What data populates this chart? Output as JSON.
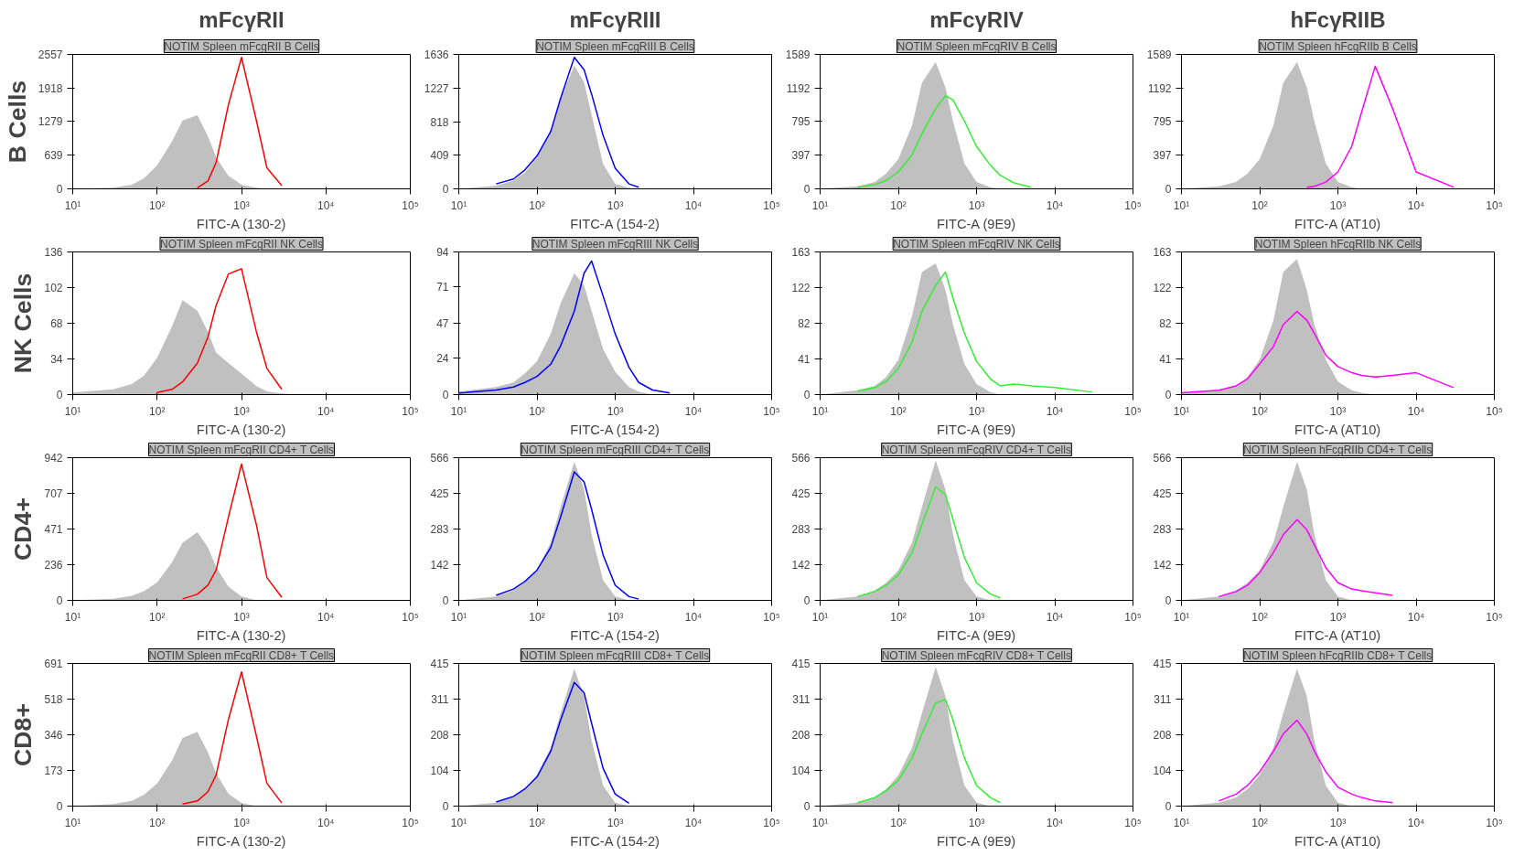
{
  "chart_data": [
    {
      "type": "area",
      "annotations": [
        "mFcγRII"
      ],
      "ylabel": "B Cells",
      "title": "NOTIM Spleen mFcgRII B Cells",
      "xlabel": "FITC-A (130-2)",
      "log": "x",
      "xlim": [
        10,
        100000
      ],
      "xticks": [
        {
          "value": 10,
          "label": "10¹"
        },
        {
          "value": 100,
          "label": "10²"
        },
        {
          "value": 1000,
          "label": "10³"
        },
        {
          "value": 10000,
          "label": "10⁴"
        },
        {
          "value": 100000,
          "label": "10⁵"
        }
      ],
      "ylim": [
        0,
        2557
      ],
      "yticks": [
        0,
        639,
        1279,
        1918,
        2557
      ],
      "x": [
        10,
        30,
        50,
        70,
        100,
        150,
        200,
        300,
        400,
        500,
        700,
        1000,
        1500,
        2000,
        3000,
        5000,
        10000,
        30000,
        100000
      ],
      "series": [
        {
          "color": "#c0c0c0",
          "values": [
            0,
            20,
            80,
            200,
            450,
            900,
            1300,
            1400,
            1000,
            600,
            250,
            80,
            20,
            0,
            0,
            0,
            0,
            0,
            0
          ]
        },
        {
          "type": "line",
          "color": "#ff0000",
          "values": [
            null,
            null,
            null,
            null,
            null,
            null,
            null,
            20,
            150,
            500,
            1600,
            2500,
            1300,
            400,
            60,
            null,
            null,
            null,
            null
          ]
        }
      ]
    },
    {
      "type": "area",
      "annotations": [
        "mFcγRIII"
      ],
      "title": "NOTIM Spleen mFcgRIII B Cells",
      "xlabel": "FITC-A (154-2)",
      "log": "x",
      "xlim": [
        10,
        100000
      ],
      "xticks": [
        {
          "value": 10,
          "label": "10¹"
        },
        {
          "value": 100,
          "label": "10²"
        },
        {
          "value": 1000,
          "label": "10³"
        },
        {
          "value": 10000,
          "label": "10⁴"
        },
        {
          "value": 100000,
          "label": "10⁵"
        }
      ],
      "ylim": [
        0,
        1636
      ],
      "yticks": [
        0,
        409,
        818,
        1227,
        1636
      ],
      "x": [
        10,
        30,
        50,
        70,
        100,
        150,
        200,
        300,
        400,
        500,
        700,
        1000,
        1500,
        2000,
        3000,
        5000,
        10000,
        30000,
        100000
      ],
      "series": [
        {
          "color": "#c0c0c0",
          "values": [
            0,
            40,
            100,
            200,
            380,
            700,
            1100,
            1500,
            1300,
            900,
            300,
            60,
            10,
            0,
            0,
            0,
            0,
            0,
            0
          ]
        },
        {
          "type": "line",
          "color": "#0000ff",
          "values": [
            null,
            60,
            120,
            230,
            400,
            700,
            1100,
            1600,
            1450,
            1150,
            650,
            250,
            60,
            20,
            null,
            null,
            null,
            null,
            null
          ]
        }
      ]
    },
    {
      "type": "area",
      "annotations": [
        "mFcγRIV"
      ],
      "title": "NOTIM Spleen mFcgRIV B Cells",
      "xlabel": "FITC-A (9E9)",
      "log": "x",
      "xlim": [
        10,
        100000
      ],
      "xticks": [
        {
          "value": 10,
          "label": "10¹"
        },
        {
          "value": 100,
          "label": "10²"
        },
        {
          "value": 1000,
          "label": "10³"
        },
        {
          "value": 10000,
          "label": "10⁴"
        },
        {
          "value": 100000,
          "label": "10⁵"
        }
      ],
      "ylim": [
        0,
        1589
      ],
      "yticks": [
        0,
        397,
        795,
        1192,
        1589
      ],
      "x": [
        10,
        30,
        50,
        70,
        100,
        150,
        200,
        300,
        400,
        500,
        700,
        1000,
        1500,
        2000,
        3000,
        5000,
        10000,
        30000,
        100000
      ],
      "series": [
        {
          "color": "#c0c0c0",
          "values": [
            0,
            30,
            80,
            180,
            350,
            750,
            1250,
            1500,
            1200,
            800,
            300,
            80,
            20,
            0,
            0,
            0,
            0,
            0,
            0
          ]
        },
        {
          "type": "line",
          "color": "#33ee33",
          "values": [
            null,
            20,
            50,
            100,
            200,
            400,
            650,
            950,
            1100,
            1050,
            800,
            500,
            280,
            160,
            70,
            20,
            null,
            null,
            null
          ]
        }
      ]
    },
    {
      "type": "area",
      "annotations": [
        "hFcγRIIB"
      ],
      "title": "NOTIM Spleen hFcgRIIb B Cells",
      "xlabel": "FITC-A (AT10)",
      "log": "x",
      "xlim": [
        10,
        100000
      ],
      "xticks": [
        {
          "value": 10,
          "label": "10¹"
        },
        {
          "value": 100,
          "label": "10²"
        },
        {
          "value": 1000,
          "label": "10³"
        },
        {
          "value": 10000,
          "label": "10⁴"
        },
        {
          "value": 100000,
          "label": "10⁵"
        }
      ],
      "ylim": [
        0,
        1589
      ],
      "yticks": [
        0,
        397,
        795,
        1192,
        1589
      ],
      "x": [
        10,
        30,
        50,
        70,
        100,
        150,
        200,
        300,
        400,
        500,
        700,
        1000,
        1500,
        2000,
        3000,
        5000,
        10000,
        30000,
        100000
      ],
      "series": [
        {
          "color": "#c0c0c0",
          "values": [
            0,
            30,
            80,
            180,
            350,
            750,
            1250,
            1500,
            1200,
            800,
            300,
            80,
            20,
            0,
            0,
            0,
            0,
            0,
            0
          ]
        },
        {
          "type": "line",
          "color": "#ff00ff",
          "values": [
            null,
            null,
            null,
            null,
            null,
            null,
            null,
            null,
            20,
            30,
            80,
            200,
            500,
            900,
            1450,
            950,
            200,
            20,
            null
          ]
        }
      ]
    },
    {
      "type": "area",
      "ylabel": "NK Cells",
      "title": "NOTIM Spleen mFcgRII NK Cells",
      "xlabel": "FITC-A (130-2)",
      "log": "x",
      "xlim": [
        10,
        100000
      ],
      "xticks": [
        {
          "value": 10,
          "label": "10¹"
        },
        {
          "value": 100,
          "label": "10²"
        },
        {
          "value": 1000,
          "label": "10³"
        },
        {
          "value": 10000,
          "label": "10⁴"
        },
        {
          "value": 100000,
          "label": "10⁵"
        }
      ],
      "ylim": [
        0,
        136
      ],
      "yticks": [
        0,
        34,
        68,
        102,
        136
      ],
      "x": [
        10,
        30,
        50,
        70,
        100,
        150,
        200,
        300,
        400,
        500,
        700,
        1000,
        1500,
        2000,
        3000,
        5000,
        10000,
        30000,
        100000
      ],
      "series": [
        {
          "color": "#c0c0c0",
          "values": [
            2,
            5,
            10,
            18,
            35,
            65,
            90,
            80,
            60,
            40,
            30,
            20,
            8,
            3,
            1,
            0,
            0,
            0,
            0
          ]
        },
        {
          "type": "line",
          "color": "#ff0000",
          "values": [
            null,
            null,
            null,
            null,
            2,
            5,
            12,
            30,
            55,
            85,
            115,
            120,
            60,
            25,
            5,
            null,
            null,
            null,
            null
          ]
        }
      ]
    },
    {
      "type": "area",
      "title": "NOTIM Spleen mFcgRIII NK Cells",
      "xlabel": "FITC-A (154-2)",
      "log": "x",
      "xlim": [
        10,
        100000
      ],
      "xticks": [
        {
          "value": 10,
          "label": "10¹"
        },
        {
          "value": 100,
          "label": "10²"
        },
        {
          "value": 1000,
          "label": "10³"
        },
        {
          "value": 10000,
          "label": "10⁴"
        },
        {
          "value": 100000,
          "label": "10⁵"
        }
      ],
      "ylim": [
        0,
        94
      ],
      "yticks": [
        0,
        24,
        47,
        71,
        94
      ],
      "x": [
        10,
        30,
        50,
        70,
        100,
        150,
        200,
        300,
        400,
        500,
        700,
        1000,
        1500,
        2000,
        3000,
        5000,
        10000,
        30000,
        100000
      ],
      "series": [
        {
          "color": "#c0c0c0",
          "values": [
            2,
            5,
            8,
            14,
            22,
            40,
            60,
            80,
            72,
            55,
            30,
            15,
            5,
            2,
            0,
            0,
            0,
            0,
            0
          ]
        },
        {
          "type": "line",
          "color": "#0000ff",
          "values": [
            1,
            3,
            5,
            8,
            12,
            20,
            32,
            55,
            80,
            88,
            65,
            40,
            18,
            8,
            3,
            1,
            null,
            null,
            null
          ]
        }
      ]
    },
    {
      "type": "area",
      "title": "NOTIM Spleen mFcgRIV NK Cells",
      "xlabel": "FITC-A (9E9)",
      "log": "x",
      "xlim": [
        10,
        100000
      ],
      "xticks": [
        {
          "value": 10,
          "label": "10¹"
        },
        {
          "value": 100,
          "label": "10²"
        },
        {
          "value": 1000,
          "label": "10³"
        },
        {
          "value": 10000,
          "label": "10⁴"
        },
        {
          "value": 100000,
          "label": "10⁵"
        }
      ],
      "ylim": [
        0,
        163
      ],
      "yticks": [
        0,
        41,
        82,
        122,
        163
      ],
      "x": [
        10,
        30,
        50,
        70,
        100,
        150,
        200,
        300,
        400,
        500,
        700,
        1000,
        1500,
        2000,
        3000,
        5000,
        10000,
        30000,
        100000
      ],
      "series": [
        {
          "color": "#c0c0c0",
          "values": [
            0,
            5,
            10,
            20,
            40,
            90,
            140,
            150,
            120,
            80,
            35,
            12,
            3,
            0,
            0,
            0,
            0,
            0,
            0
          ]
        },
        {
          "type": "line",
          "color": "#33ee33",
          "values": [
            null,
            4,
            8,
            15,
            30,
            60,
            95,
            125,
            140,
            110,
            70,
            38,
            18,
            10,
            12,
            10,
            8,
            3,
            null
          ]
        }
      ]
    },
    {
      "type": "area",
      "title": "NOTIM Spleen hFcgRIIb NK Cells",
      "xlabel": "FITC-A (AT10)",
      "log": "x",
      "xlim": [
        10,
        100000
      ],
      "xticks": [
        {
          "value": 10,
          "label": "10¹"
        },
        {
          "value": 100,
          "label": "10²"
        },
        {
          "value": 1000,
          "label": "10³"
        },
        {
          "value": 10000,
          "label": "10⁴"
        },
        {
          "value": 100000,
          "label": "10⁵"
        }
      ],
      "ylim": [
        0,
        163
      ],
      "yticks": [
        0,
        41,
        82,
        122,
        163
      ],
      "x": [
        10,
        30,
        50,
        70,
        100,
        150,
        200,
        300,
        400,
        500,
        700,
        1000,
        1500,
        2000,
        3000,
        5000,
        10000,
        30000,
        100000
      ],
      "series": [
        {
          "color": "#c0c0c0",
          "values": [
            2,
            5,
            10,
            20,
            40,
            85,
            140,
            155,
            120,
            80,
            40,
            15,
            5,
            2,
            0,
            0,
            0,
            0,
            0
          ]
        },
        {
          "type": "line",
          "color": "#ff00ff",
          "values": [
            2,
            5,
            10,
            18,
            35,
            55,
            80,
            95,
            85,
            70,
            45,
            32,
            25,
            22,
            20,
            22,
            25,
            8,
            null
          ]
        }
      ]
    },
    {
      "type": "area",
      "ylabel": "CD4+",
      "title": "NOTIM Spleen mFcgRII CD4+ T Cells",
      "xlabel": "FITC-A (130-2)",
      "log": "x",
      "xlim": [
        10,
        100000
      ],
      "xticks": [
        {
          "value": 10,
          "label": "10¹"
        },
        {
          "value": 100,
          "label": "10²"
        },
        {
          "value": 1000,
          "label": "10³"
        },
        {
          "value": 10000,
          "label": "10⁴"
        },
        {
          "value": 100000,
          "label": "10⁵"
        }
      ],
      "ylim": [
        0,
        942
      ],
      "yticks": [
        0,
        236,
        471,
        707,
        942
      ],
      "x": [
        10,
        30,
        50,
        70,
        100,
        150,
        200,
        300,
        400,
        500,
        700,
        1000,
        1500,
        2000,
        3000,
        5000,
        10000,
        30000,
        100000
      ],
      "series": [
        {
          "color": "#c0c0c0",
          "values": [
            0,
            10,
            30,
            60,
            120,
            250,
            380,
            450,
            350,
            220,
            90,
            25,
            0,
            0,
            0,
            0,
            0,
            0,
            0
          ]
        },
        {
          "type": "line",
          "color": "#ff0000",
          "values": [
            null,
            null,
            null,
            null,
            null,
            null,
            10,
            40,
            100,
            200,
            550,
            900,
            500,
            150,
            20,
            null,
            null,
            null,
            null
          ]
        }
      ]
    },
    {
      "type": "area",
      "title": "NOTIM Spleen mFcgRIII CD4+ T Cells",
      "xlabel": "FITC-A (154-2)",
      "log": "x",
      "xlim": [
        10,
        100000
      ],
      "xticks": [
        {
          "value": 10,
          "label": "10¹"
        },
        {
          "value": 100,
          "label": "10²"
        },
        {
          "value": 1000,
          "label": "10³"
        },
        {
          "value": 10000,
          "label": "10⁴"
        },
        {
          "value": 100000,
          "label": "10⁵"
        }
      ],
      "ylim": [
        0,
        566
      ],
      "yticks": [
        0,
        142,
        283,
        425,
        566
      ],
      "x": [
        10,
        30,
        50,
        70,
        100,
        150,
        200,
        300,
        400,
        500,
        700,
        1000,
        1500,
        2000,
        3000,
        5000,
        10000,
        30000,
        100000
      ],
      "series": [
        {
          "color": "#c0c0c0",
          "values": [
            0,
            15,
            40,
            70,
            120,
            230,
            370,
            550,
            440,
            260,
            80,
            15,
            0,
            0,
            0,
            0,
            0,
            0,
            0
          ]
        },
        {
          "type": "line",
          "color": "#0000ff",
          "values": [
            null,
            20,
            45,
            75,
            120,
            210,
            330,
            510,
            470,
            360,
            180,
            60,
            15,
            5,
            null,
            null,
            null,
            null,
            null
          ]
        }
      ]
    },
    {
      "type": "area",
      "title": "NOTIM Spleen mFcgRIV CD4+ T Cells",
      "xlabel": "FITC-A (9E9)",
      "log": "x",
      "xlim": [
        10,
        100000
      ],
      "xticks": [
        {
          "value": 10,
          "label": "10¹"
        },
        {
          "value": 100,
          "label": "10²"
        },
        {
          "value": 1000,
          "label": "10³"
        },
        {
          "value": 10000,
          "label": "10⁴"
        },
        {
          "value": 100000,
          "label": "10⁵"
        }
      ],
      "ylim": [
        0,
        566
      ],
      "yticks": [
        0,
        142,
        283,
        425,
        566
      ],
      "x": [
        10,
        30,
        50,
        70,
        100,
        150,
        200,
        300,
        400,
        500,
        700,
        1000,
        1500,
        2000,
        3000,
        5000,
        10000,
        30000,
        100000
      ],
      "series": [
        {
          "color": "#c0c0c0",
          "values": [
            0,
            15,
            40,
            70,
            120,
            230,
            370,
            555,
            440,
            260,
            80,
            15,
            0,
            0,
            0,
            0,
            0,
            0,
            0
          ]
        },
        {
          "type": "line",
          "color": "#33ee33",
          "values": [
            null,
            15,
            35,
            60,
            100,
            190,
            300,
            450,
            420,
            320,
            170,
            70,
            25,
            10,
            null,
            null,
            null,
            null,
            null
          ]
        }
      ]
    },
    {
      "type": "area",
      "title": "NOTIM Spleen hFcgRIIb CD4+ T Cells",
      "xlabel": "FITC-A (AT10)",
      "log": "x",
      "xlim": [
        10,
        100000
      ],
      "xticks": [
        {
          "value": 10,
          "label": "10¹"
        },
        {
          "value": 100,
          "label": "10²"
        },
        {
          "value": 1000,
          "label": "10³"
        },
        {
          "value": 10000,
          "label": "10⁴"
        },
        {
          "value": 100000,
          "label": "10⁵"
        }
      ],
      "ylim": [
        0,
        566
      ],
      "yticks": [
        0,
        142,
        283,
        425,
        566
      ],
      "x": [
        10,
        30,
        50,
        70,
        100,
        150,
        200,
        300,
        400,
        500,
        700,
        1000,
        1500,
        2000,
        3000,
        5000,
        10000,
        30000,
        100000
      ],
      "series": [
        {
          "color": "#c0c0c0",
          "values": [
            0,
            15,
            40,
            70,
            120,
            230,
            370,
            550,
            440,
            260,
            80,
            15,
            0,
            0,
            0,
            0,
            0,
            0,
            0
          ]
        },
        {
          "type": "line",
          "color": "#ff00ff",
          "values": [
            null,
            15,
            35,
            60,
            110,
            190,
            260,
            320,
            280,
            220,
            130,
            70,
            45,
            38,
            30,
            20,
            null,
            null,
            null
          ]
        }
      ]
    },
    {
      "type": "area",
      "ylabel": "CD8+",
      "title": "NOTIM Spleen mFcgRII CD8+ T Cells",
      "xlabel": "FITC-A (130-2)",
      "log": "x",
      "xlim": [
        10,
        100000
      ],
      "xticks": [
        {
          "value": 10,
          "label": "10¹"
        },
        {
          "value": 100,
          "label": "10²"
        },
        {
          "value": 1000,
          "label": "10³"
        },
        {
          "value": 10000,
          "label": "10⁴"
        },
        {
          "value": 100000,
          "label": "10⁵"
        }
      ],
      "ylim": [
        0,
        691
      ],
      "yticks": [
        0,
        173,
        346,
        518,
        691
      ],
      "x": [
        10,
        30,
        50,
        70,
        100,
        150,
        200,
        300,
        400,
        500,
        700,
        1000,
        1500,
        2000,
        3000,
        5000,
        10000,
        30000,
        100000
      ],
      "series": [
        {
          "color": "#c0c0c0",
          "values": [
            0,
            10,
            25,
            55,
            110,
            220,
            330,
            360,
            260,
            160,
            60,
            15,
            0,
            0,
            0,
            0,
            0,
            0,
            0
          ]
        },
        {
          "type": "line",
          "color": "#ff0000",
          "values": [
            null,
            null,
            null,
            null,
            null,
            null,
            10,
            25,
            70,
            150,
            420,
            650,
            340,
            110,
            15,
            null,
            null,
            null,
            null
          ]
        }
      ]
    },
    {
      "type": "area",
      "title": "NOTIM Spleen mFcgRIII CD8+ T Cells",
      "xlabel": "FITC-A (154-2)",
      "log": "x",
      "xlim": [
        10,
        100000
      ],
      "xticks": [
        {
          "value": 10,
          "label": "10¹"
        },
        {
          "value": 100,
          "label": "10²"
        },
        {
          "value": 1000,
          "label": "10³"
        },
        {
          "value": 10000,
          "label": "10⁴"
        },
        {
          "value": 100000,
          "label": "10⁵"
        }
      ],
      "ylim": [
        0,
        415
      ],
      "yticks": [
        0,
        104,
        208,
        311,
        415
      ],
      "x": [
        10,
        30,
        50,
        70,
        100,
        150,
        200,
        300,
        400,
        500,
        700,
        1000,
        1500,
        2000,
        3000,
        5000,
        10000,
        30000,
        100000
      ],
      "series": [
        {
          "color": "#c0c0c0",
          "values": [
            0,
            10,
            25,
            50,
            90,
            170,
            270,
            400,
            320,
            190,
            60,
            10,
            0,
            0,
            0,
            0,
            0,
            0,
            0
          ]
        },
        {
          "type": "line",
          "color": "#0000ff",
          "values": [
            null,
            12,
            28,
            50,
            85,
            160,
            250,
            360,
            330,
            240,
            110,
            35,
            8,
            null,
            null,
            null,
            null,
            null,
            null
          ]
        }
      ]
    },
    {
      "type": "area",
      "title": "NOTIM Spleen mFcgRIV CD8+ T Cells",
      "xlabel": "FITC-A (9E9)",
      "log": "x",
      "xlim": [
        10,
        100000
      ],
      "xticks": [
        {
          "value": 10,
          "label": "10¹"
        },
        {
          "value": 100,
          "label": "10²"
        },
        {
          "value": 1000,
          "label": "10³"
        },
        {
          "value": 10000,
          "label": "10⁴"
        },
        {
          "value": 100000,
          "label": "10⁵"
        }
      ],
      "ylim": [
        0,
        415
      ],
      "yticks": [
        0,
        104,
        208,
        311,
        415
      ],
      "x": [
        10,
        30,
        50,
        70,
        100,
        150,
        200,
        300,
        400,
        500,
        700,
        1000,
        1500,
        2000,
        3000,
        5000,
        10000,
        30000,
        100000
      ],
      "series": [
        {
          "color": "#c0c0c0",
          "values": [
            0,
            10,
            25,
            50,
            90,
            170,
            270,
            405,
            320,
            190,
            60,
            10,
            0,
            0,
            0,
            0,
            0,
            0,
            0
          ]
        },
        {
          "type": "line",
          "color": "#33ee33",
          "values": [
            null,
            10,
            25,
            45,
            75,
            140,
            210,
            300,
            310,
            250,
            140,
            60,
            25,
            10,
            null,
            null,
            null,
            null,
            null
          ]
        }
      ]
    },
    {
      "type": "area",
      "title": "NOTIM Spleen hFcgRIIb CD8+ T Cells",
      "xlabel": "FITC-A (AT10)",
      "log": "x",
      "xlim": [
        10,
        100000
      ],
      "xticks": [
        {
          "value": 10,
          "label": "10¹"
        },
        {
          "value": 100,
          "label": "10²"
        },
        {
          "value": 1000,
          "label": "10³"
        },
        {
          "value": 10000,
          "label": "10⁴"
        },
        {
          "value": 100000,
          "label": "10⁵"
        }
      ],
      "ylim": [
        0,
        415
      ],
      "yticks": [
        0,
        104,
        208,
        311,
        415
      ],
      "x": [
        10,
        30,
        50,
        70,
        100,
        150,
        200,
        300,
        400,
        500,
        700,
        1000,
        1500,
        2000,
        3000,
        5000,
        10000,
        30000,
        100000
      ],
      "series": [
        {
          "color": "#c0c0c0",
          "values": [
            0,
            10,
            25,
            50,
            90,
            170,
            270,
            400,
            320,
            190,
            60,
            10,
            0,
            0,
            0,
            0,
            0,
            0,
            0
          ]
        },
        {
          "type": "line",
          "color": "#ff00ff",
          "values": [
            null,
            15,
            35,
            60,
            100,
            160,
            210,
            250,
            210,
            160,
            100,
            55,
            35,
            25,
            15,
            10,
            null,
            null,
            null
          ]
        }
      ]
    }
  ]
}
